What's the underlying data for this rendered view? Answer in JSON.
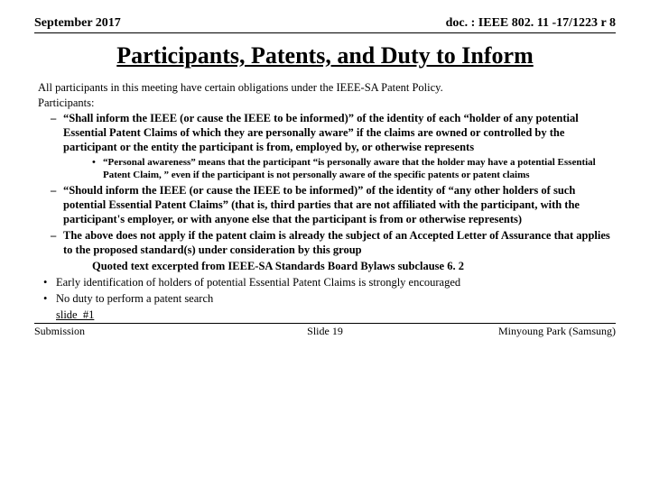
{
  "header": {
    "date": "September 2017",
    "docid": "doc. : IEEE 802. 11 -17/1223 r 8"
  },
  "title": "Participants, Patents, and Duty to Inform",
  "intro": "All participants in this meeting have certain obligations under the IEEE-SA Patent Policy.",
  "participantsLabel": "Participants:",
  "items": {
    "sub1": "“Shall inform the IEEE (or cause the IEEE to be informed)” of the identity of each “holder of any potential Essential Patent Claims of which they are personally aware” if the claims are owned or controlled by the participant or the entity the participant is from, employed by, or otherwise represents",
    "note1": "“Personal awareness” means that the participant “is personally aware that the holder may have a potential Essential Patent Claim, ” even if the participant is not personally aware of the specific patents or patent claims",
    "sub2": "“Should inform the IEEE (or cause the IEEE to be informed)” of the identity of “any other holders of such potential Essential Patent Claims” (that is, third parties that are not affiliated with the participant, with the participant's employer, or with anyone else that the participant is from or otherwise represents)",
    "sub3": "The above does not apply if the patent claim is already the subject of an Accepted Letter of Assurance that applies to the proposed standard(s) under consideration by this group",
    "quoted": "Quoted text excerpted from IEEE-SA Standards Board Bylaws subclause 6. 2",
    "bullet1": "Early identification of holders of potential Essential Patent Claims is strongly encouraged",
    "bullet2": "No duty to perform a patent search",
    "slideref": "slide_#1"
  },
  "footer": {
    "left": "Submission",
    "center": "Slide 19",
    "right": "Minyoung Park (Samsung)"
  }
}
